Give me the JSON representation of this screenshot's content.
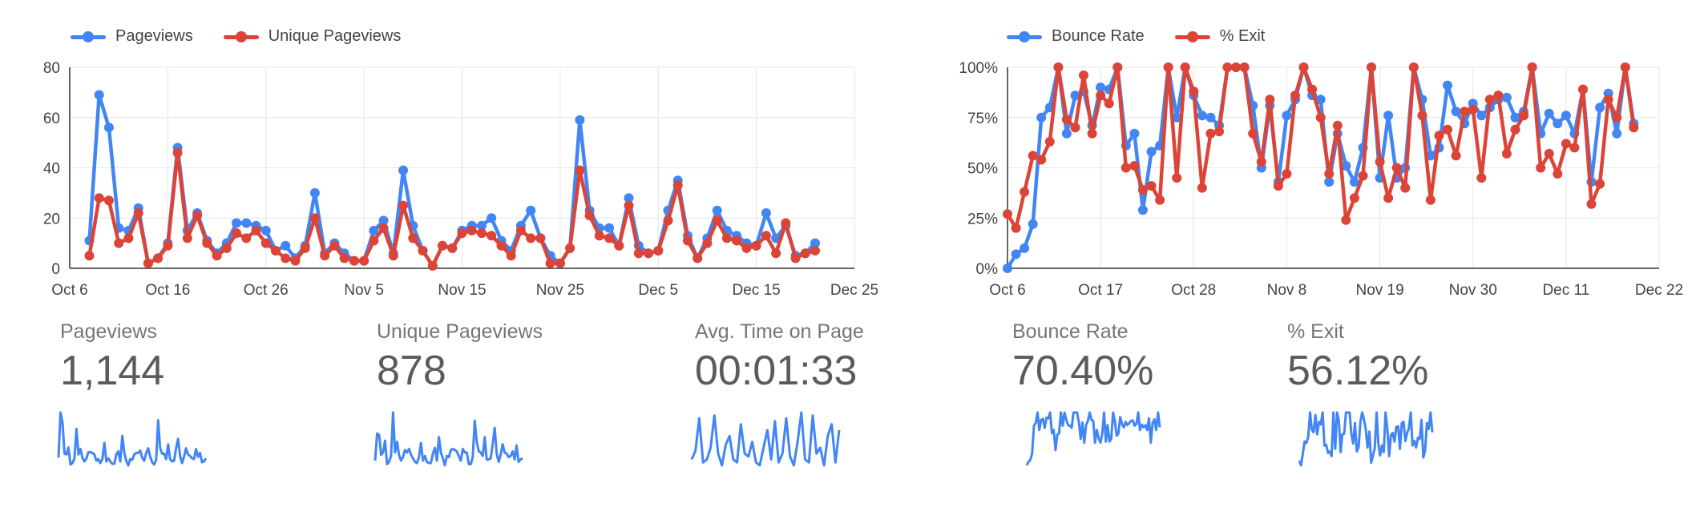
{
  "colors": {
    "blue": "#4285f4",
    "red": "#db4437",
    "grid": "#e6e6e6",
    "axis": "#333333"
  },
  "chart_data": [
    {
      "type": "line",
      "title": "",
      "xlabel": "",
      "ylabel": "",
      "x_tick_labels": [
        "Oct 6",
        "Oct 16",
        "Oct 26",
        "Nov 5",
        "Nov 15",
        "Nov 25",
        "Dec 5",
        "Dec 15",
        "Dec 25"
      ],
      "y_tick_labels": [
        "0",
        "20",
        "40",
        "60",
        "80"
      ],
      "ylim": [
        0,
        80
      ],
      "grid": true,
      "legend_position": "top-left",
      "series": [
        {
          "name": "Pageviews",
          "color": "#4285f4",
          "values": [
            11,
            69,
            56,
            16,
            15,
            24,
            2,
            4,
            10,
            48,
            15,
            22,
            11,
            6,
            10,
            18,
            18,
            17,
            15,
            7,
            9,
            4,
            9,
            30,
            6,
            10,
            6,
            3,
            3,
            15,
            19,
            6,
            39,
            17,
            7,
            1,
            9,
            8,
            15,
            17,
            17,
            20,
            11,
            7,
            17,
            23,
            12,
            5,
            2,
            8,
            59,
            23,
            16,
            16,
            9,
            28,
            9,
            6,
            7,
            23,
            35,
            13,
            4,
            12,
            23,
            15,
            13,
            10,
            9,
            22,
            12,
            17,
            5,
            6,
            10
          ],
          "x_start": "Oct 8"
        },
        {
          "name": "Unique Pageviews",
          "color": "#db4437",
          "values": [
            5,
            28,
            27,
            10,
            12,
            22,
            2,
            4,
            9,
            46,
            12,
            21,
            10,
            5,
            8,
            14,
            12,
            15,
            10,
            7,
            4,
            3,
            8,
            20,
            5,
            9,
            4,
            3,
            3,
            11,
            16,
            5,
            25,
            12,
            7,
            1,
            9,
            8,
            14,
            15,
            14,
            13,
            9,
            5,
            15,
            12,
            12,
            2,
            2,
            8,
            39,
            21,
            13,
            12,
            9,
            25,
            6,
            6,
            7,
            19,
            33,
            11,
            4,
            10,
            19,
            12,
            11,
            8,
            9,
            13,
            6,
            18,
            4,
            6,
            7
          ],
          "x_start": "Oct 8"
        }
      ]
    },
    {
      "type": "line",
      "title": "",
      "xlabel": "",
      "ylabel": "",
      "x_tick_labels": [
        "Oct 6",
        "Oct 17",
        "Oct 28",
        "Nov 8",
        "Nov 19",
        "Nov 30",
        "Dec 11",
        "Dec 22"
      ],
      "y_tick_labels": [
        "0%",
        "25%",
        "50%",
        "75%",
        "100%"
      ],
      "ylim": [
        0,
        100
      ],
      "grid": true,
      "legend_position": "top-left",
      "series": [
        {
          "name": "Bounce Rate",
          "color": "#4285f4",
          "values": [
            0,
            7,
            10,
            22,
            75,
            80,
            100,
            67,
            86,
            88,
            71,
            90,
            89,
            100,
            61,
            67,
            29,
            58,
            61,
            100,
            75,
            100,
            86,
            76,
            75,
            71,
            100,
            100,
            100,
            81,
            50,
            81,
            43,
            76,
            84,
            100,
            86,
            84,
            43,
            67,
            51,
            43,
            60,
            100,
            45,
            76,
            45,
            50,
            100,
            84,
            56,
            60,
            91,
            78,
            72,
            82,
            76,
            80,
            84,
            85,
            75,
            78,
            100,
            67,
            77,
            72,
            76,
            67,
            89,
            43,
            80,
            87,
            67,
            100,
            72
          ],
          "x_start": "Oct 6"
        },
        {
          "name": "% Exit",
          "color": "#db4437",
          "values": [
            27,
            20,
            38,
            56,
            54,
            63,
            100,
            74,
            70,
            96,
            67,
            86,
            82,
            100,
            50,
            51,
            39,
            41,
            34,
            100,
            45,
            100,
            88,
            40,
            67,
            68,
            100,
            100,
            100,
            67,
            53,
            84,
            41,
            47,
            86,
            100,
            89,
            75,
            47,
            71,
            24,
            35,
            46,
            100,
            53,
            35,
            50,
            40,
            100,
            76,
            34,
            66,
            69,
            56,
            78,
            79,
            45,
            84,
            86,
            57,
            69,
            76,
            100,
            50,
            57,
            47,
            62,
            60,
            89,
            32,
            42,
            84,
            75,
            100,
            70
          ],
          "x_start": "Oct 6"
        }
      ]
    }
  ],
  "stats": [
    {
      "label": "Pageviews",
      "value": "1,144"
    },
    {
      "label": "Unique Pageviews",
      "value": "878"
    },
    {
      "label": "Avg. Time on Page",
      "value": "00:01:33"
    },
    {
      "label": "Bounce Rate",
      "value": "70.40%"
    },
    {
      "label": "% Exit",
      "value": "56.12%"
    }
  ],
  "sparklines": [
    {
      "metric": "Pageviews",
      "color": "#4285f4",
      "values": [
        11,
        69,
        56,
        16,
        15,
        24,
        2,
        4,
        10,
        48,
        15,
        22,
        11,
        6,
        10,
        18,
        18,
        17,
        15,
        7,
        9,
        4,
        9,
        30,
        6,
        10,
        6,
        3,
        3,
        15,
        19,
        6,
        39,
        17,
        7,
        1,
        9,
        8,
        15,
        17,
        17,
        20,
        11,
        7,
        17,
        23,
        12,
        5,
        2,
        8,
        59,
        23,
        16,
        16,
        9,
        28,
        9,
        6,
        7,
        23,
        35,
        13,
        4,
        12,
        23,
        15,
        13,
        10,
        9,
        22,
        12,
        17,
        5,
        6,
        10
      ]
    },
    {
      "metric": "Unique Pageviews",
      "color": "#4285f4",
      "values": [
        5,
        28,
        27,
        10,
        12,
        22,
        2,
        4,
        9,
        46,
        12,
        21,
        10,
        5,
        8,
        14,
        12,
        15,
        10,
        7,
        4,
        3,
        8,
        20,
        5,
        9,
        4,
        3,
        3,
        11,
        16,
        5,
        25,
        12,
        7,
        1,
        9,
        8,
        14,
        15,
        14,
        13,
        9,
        5,
        15,
        12,
        12,
        2,
        2,
        8,
        39,
        21,
        13,
        12,
        9,
        25,
        6,
        6,
        7,
        19,
        33,
        11,
        4,
        10,
        19,
        12,
        11,
        8,
        9,
        13,
        6,
        18,
        4,
        6,
        7
      ]
    },
    {
      "metric": "Avg. Time on Page",
      "color": "#4285f4",
      "values": [
        20,
        35,
        90,
        15,
        20,
        40,
        95,
        30,
        10,
        45,
        60,
        20,
        15,
        80,
        30,
        25,
        50,
        15,
        10,
        40,
        70,
        20,
        85,
        15,
        30,
        90,
        25,
        10,
        50,
        100,
        20,
        15,
        95,
        30,
        40,
        10,
        60,
        80,
        15,
        70
      ]
    },
    {
      "metric": "Bounce Rate",
      "color": "#4285f4",
      "values": [
        0,
        7,
        10,
        22,
        75,
        80,
        100,
        67,
        86,
        88,
        71,
        90,
        89,
        100,
        61,
        67,
        29,
        58,
        61,
        100,
        75,
        100,
        86,
        76,
        75,
        71,
        100,
        100,
        100,
        81,
        50,
        81,
        43,
        76,
        84,
        100,
        86,
        84,
        43,
        67,
        51,
        43,
        60,
        100,
        45,
        76,
        45,
        50,
        100,
        84,
        56,
        60,
        91,
        78,
        72,
        82,
        76,
        80,
        84,
        85,
        75,
        78,
        100,
        67,
        77,
        72,
        76,
        67,
        89,
        43,
        80,
        87,
        67,
        100,
        72
      ]
    },
    {
      "metric": "% Exit",
      "color": "#4285f4",
      "values": [
        27,
        20,
        38,
        56,
        54,
        63,
        100,
        74,
        70,
        96,
        67,
        86,
        82,
        100,
        50,
        51,
        39,
        41,
        34,
        100,
        45,
        100,
        88,
        40,
        67,
        68,
        100,
        100,
        100,
        67,
        53,
        84,
        41,
        47,
        86,
        100,
        89,
        75,
        47,
        71,
        24,
        35,
        46,
        100,
        53,
        35,
        50,
        40,
        100,
        76,
        34,
        66,
        69,
        56,
        78,
        79,
        45,
        84,
        86,
        57,
        69,
        76,
        100,
        50,
        57,
        47,
        62,
        60,
        89,
        32,
        42,
        84,
        75,
        100,
        70
      ]
    }
  ]
}
